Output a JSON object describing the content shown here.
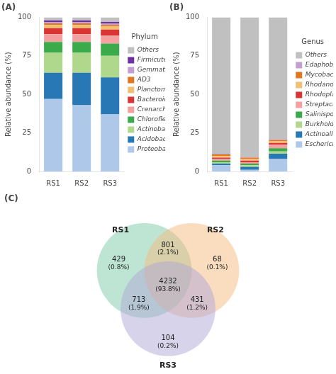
{
  "chart_data": [
    {
      "type": "bar",
      "title": "(A)",
      "stacked": true,
      "grid": false,
      "legend": "right",
      "legend_title": "Phylum",
      "y_label": "Relative abundance (%)",
      "categories": [
        "RS1",
        "RS2",
        "RS3"
      ],
      "ylim": [
        0,
        100
      ],
      "yticks": [
        0,
        25,
        50,
        75,
        100
      ],
      "series": [
        {
          "name": "Proteobacteria",
          "color": "#adc8e8",
          "values": [
            47,
            43,
            37
          ]
        },
        {
          "name": "Acidobacteria",
          "color": "#2878b5",
          "values": [
            17,
            21,
            24
          ]
        },
        {
          "name": "Actinobacteria",
          "color": "#b0d88c",
          "values": [
            13,
            13,
            14
          ]
        },
        {
          "name": "Chloroflexi",
          "color": "#3aaa4a",
          "values": [
            7,
            7,
            8
          ]
        },
        {
          "name": "Crenarchaeota",
          "color": "#f4a0a0",
          "values": [
            5,
            5,
            5
          ]
        },
        {
          "name": "Bacteroidetes",
          "color": "#d93535",
          "values": [
            4,
            4,
            4
          ]
        },
        {
          "name": "Planctomycetes",
          "color": "#f0c070",
          "values": [
            2,
            2,
            2
          ]
        },
        {
          "name": "AD3",
          "color": "#e07820",
          "values": [
            1,
            1,
            1
          ]
        },
        {
          "name": "Gemmatimonadetes",
          "color": "#c4a0d0",
          "values": [
            1,
            1,
            1
          ]
        },
        {
          "name": "Firmicutes",
          "color": "#7030a0",
          "values": [
            1,
            1,
            1
          ]
        },
        {
          "name": "Others",
          "color": "#c0c0c0",
          "values": [
            2,
            2,
            3
          ]
        }
      ]
    },
    {
      "type": "bar",
      "title": "(B)",
      "stacked": true,
      "grid": false,
      "legend": "right",
      "legend_title": "Genus",
      "y_label": "Relative abundance (%)",
      "categories": [
        "RS1",
        "RS2",
        "RS3"
      ],
      "ylim": [
        0,
        100
      ],
      "yticks": [
        0,
        25,
        50,
        75,
        100
      ],
      "series": [
        {
          "name": "Escherichia",
          "color": "#adc8e8",
          "values": [
            4.0,
            1.0,
            8.0
          ]
        },
        {
          "name": "Actinoallomurus",
          "color": "#2878b5",
          "values": [
            1.0,
            2.0,
            3.5
          ]
        },
        {
          "name": "Burkholderia",
          "color": "#b0d88c",
          "values": [
            1.0,
            1.0,
            1.5
          ]
        },
        {
          "name": "Salinispora",
          "color": "#3aaa4a",
          "values": [
            1.0,
            1.0,
            2.0
          ]
        },
        {
          "name": "Streptacidiphilus",
          "color": "#f4a0a0",
          "values": [
            1.0,
            1.0,
            2.5
          ]
        },
        {
          "name": "Rhodoplanes",
          "color": "#d93535",
          "values": [
            1.0,
            1.0,
            1.0
          ]
        },
        {
          "name": "Rhodanobacter",
          "color": "#f0c070",
          "values": [
            1.0,
            1.0,
            1.0
          ]
        },
        {
          "name": "Mycobacterium",
          "color": "#e07820",
          "values": [
            1.0,
            1.0,
            1.0
          ]
        },
        {
          "name": "Edaphobacter",
          "color": "#c4a0d0",
          "values": [
            0.5,
            0.5,
            0.5
          ]
        },
        {
          "name": "Others",
          "color": "#c0c0c0",
          "values": [
            88.5,
            90.5,
            79.0
          ]
        }
      ]
    },
    {
      "type": "venn",
      "title": "(C)",
      "sets": [
        {
          "name": "RS1",
          "color": "#7ecba9"
        },
        {
          "name": "RS2",
          "color": "#f5b97f"
        },
        {
          "name": "RS3",
          "color": "#b0a8d8"
        }
      ],
      "regions": [
        {
          "sets": [
            "RS1"
          ],
          "value": 429,
          "share": 0.8,
          "share_label": "(0.8%)"
        },
        {
          "sets": [
            "RS2"
          ],
          "value": 68,
          "share": 0.1,
          "share_label": "(0.1%)"
        },
        {
          "sets": [
            "RS1",
            "RS2"
          ],
          "value": 801,
          "share": 2.1,
          "share_label": "(2.1%)"
        },
        {
          "sets": [
            "RS1",
            "RS2",
            "RS3"
          ],
          "value": 4232,
          "share": 93.8,
          "share_label": "(93.8%)"
        },
        {
          "sets": [
            "RS1",
            "RS3"
          ],
          "value": 713,
          "share": 1.9,
          "share_label": "(1.9%)"
        },
        {
          "sets": [
            "RS2",
            "RS3"
          ],
          "value": 431,
          "share": 1.2,
          "share_label": "(1.2%)"
        },
        {
          "sets": [
            "RS3"
          ],
          "value": 104,
          "share": 0.2,
          "share_label": "(0.2%)"
        }
      ]
    }
  ]
}
